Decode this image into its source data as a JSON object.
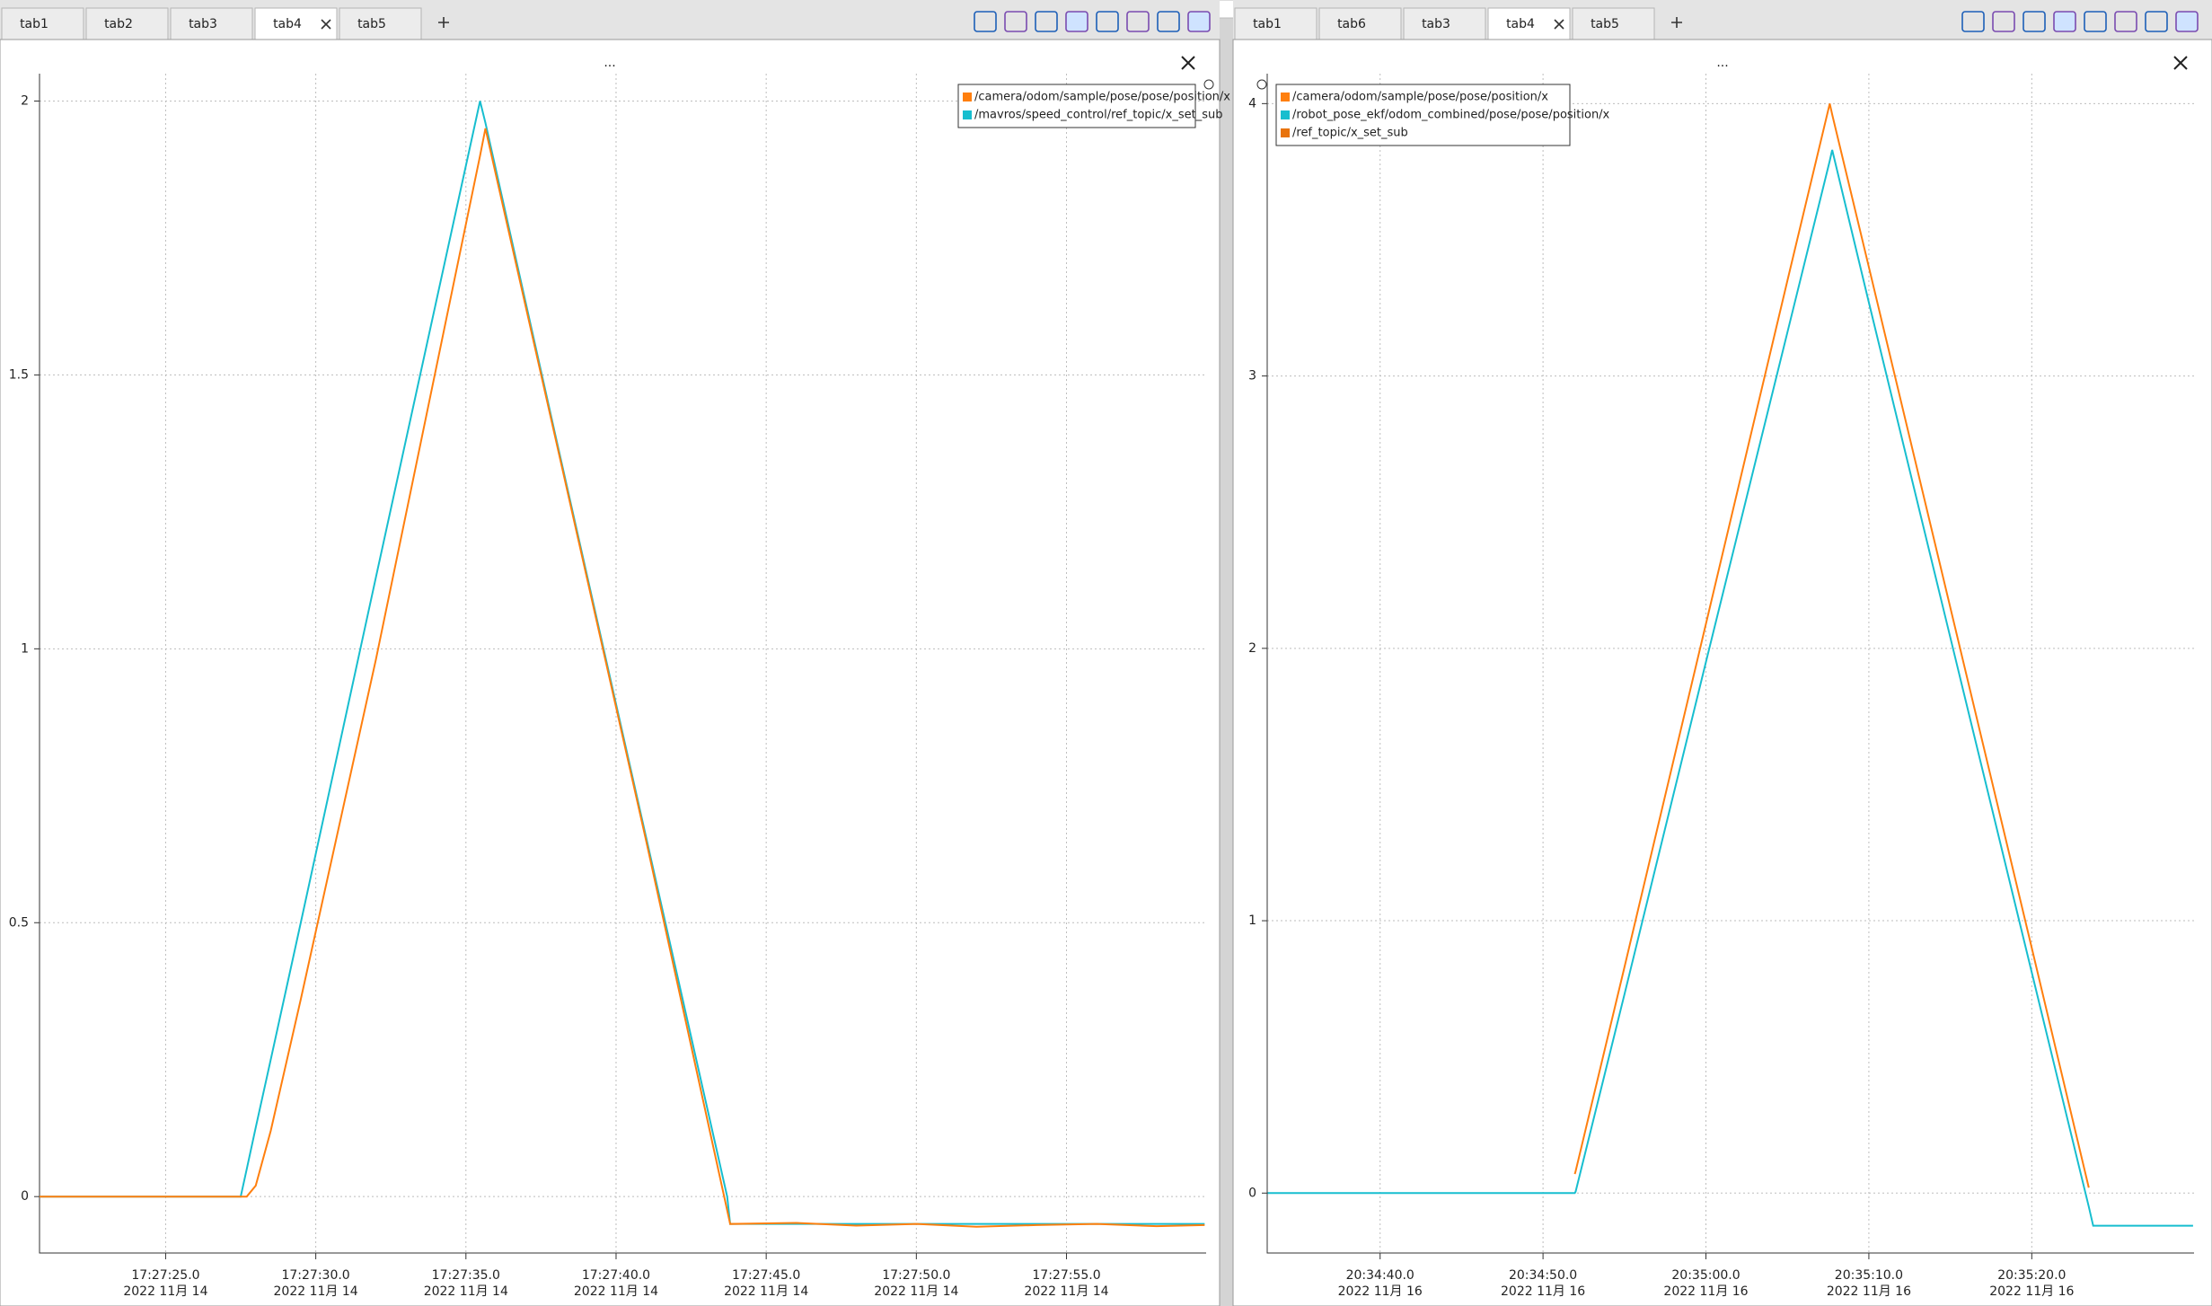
{
  "tab_bars": [
    {
      "tabs": [
        "tab1",
        "tab2",
        "tab3",
        "tab4",
        "tab5"
      ],
      "active": 3
    },
    {
      "tabs": [
        "tab1",
        "tab6",
        "tab3",
        "tab4",
        "tab5"
      ],
      "active": 3
    }
  ],
  "chart_data": [
    {
      "type": "line",
      "title": "...",
      "x": [
        20.8,
        27.5,
        27.7,
        28.0,
        28.5,
        29.5,
        32,
        35.47,
        35.65,
        38,
        41,
        43.7,
        43.8,
        46,
        48,
        50,
        52,
        54,
        56,
        58,
        59.6
      ],
      "series": [
        {
          "name": "/camera/odom/sample/pose/pose/position/x",
          "color": "#ff7f0e",
          "values": [
            0,
            0,
            0,
            0.02,
            0.12,
            0.36,
            0.98,
            1.9,
            1.95,
            1.38,
            0.65,
            -0.025,
            -0.05,
            -0.048,
            -0.053,
            -0.05,
            -0.055,
            -0.052,
            -0.05,
            -0.054,
            -0.052
          ]
        },
        {
          "name": "/mavros/speed_control/ref_topic/x_set_sub",
          "color": "#17becf",
          "values": [
            0,
            0,
            0.05,
            0.126,
            0.25,
            0.5,
            1.13,
            2.0,
            1.96,
            1.385,
            0.656,
            0,
            -0.05,
            -0.05,
            -0.05,
            -0.05,
            -0.05,
            -0.05,
            -0.05,
            -0.05,
            -0.05
          ]
        }
      ],
      "xlim": [
        20.8,
        59.65
      ],
      "xticks": [
        {
          "value": 25,
          "label": "17:27:25.0",
          "date": "2022 11月 14"
        },
        {
          "value": 30,
          "label": "17:27:30.0",
          "date": "2022 11月 14"
        },
        {
          "value": 35,
          "label": "17:27:35.0",
          "date": "2022 11月 14"
        },
        {
          "value": 40,
          "label": "17:27:40.0",
          "date": "2022 11月 14"
        },
        {
          "value": 45,
          "label": "17:27:45.0",
          "date": "2022 11月 14"
        },
        {
          "value": 50,
          "label": "17:27:50.0",
          "date": "2022 11月 14"
        },
        {
          "value": 55,
          "label": "17:27:55.0",
          "date": "2022 11月 14"
        }
      ],
      "ylim": [
        -0.103,
        2.05
      ],
      "yticks": [
        0,
        0.5,
        1,
        1.5,
        2
      ],
      "grid": true,
      "legend": "upper right"
    },
    {
      "type": "line",
      "title": "...",
      "x": [
        33.1,
        51.95,
        52.0,
        55,
        60,
        65,
        67.6,
        67.75,
        70,
        75,
        80,
        83.5,
        83.77,
        85,
        89.9
      ],
      "series": [
        {
          "name": "/camera/odom/sample/pose/pose/position/x",
          "color": "#ff7f0e",
          "values": [
            null,
            0.07,
            0.08,
            0.83,
            2.09,
            3.35,
            4.0,
            3.96,
            3.4,
            2.15,
            0.9,
            0.02,
            null,
            null,
            null
          ]
        },
        {
          "name": "/robot_pose_ekf/odom_combined/pose/pose/position/x",
          "color": "#17becf",
          "values": [
            0,
            0,
            0.005,
            0.73,
            1.95,
            3.16,
            3.79,
            3.83,
            3.27,
            2.04,
            0.81,
            -0.05,
            -0.12,
            -0.12,
            -0.12
          ]
        },
        {
          "name": "/ref_topic/x_set_sub",
          "color": "#e8730c",
          "values": [
            null,
            null,
            null,
            null,
            null,
            null,
            null,
            null,
            null,
            null,
            null,
            null,
            null,
            null,
            null
          ]
        }
      ],
      "xlim": [
        33.07,
        89.96
      ],
      "xticks": [
        {
          "value": 40,
          "label": "20:34:40.0",
          "date": "2022 11月 16"
        },
        {
          "value": 50,
          "label": "20:34:50.0",
          "date": "2022 11月 16"
        },
        {
          "value": 60,
          "label": "20:35:00.0",
          "date": "2022 11月 16"
        },
        {
          "value": 70,
          "label": "20:35:10.0",
          "date": "2022 11月 16"
        },
        {
          "value": 80,
          "label": "20:35:20.0",
          "date": "2022 11月 16"
        }
      ],
      "ylim": [
        -0.22,
        4.11
      ],
      "yticks": [
        0,
        1,
        2,
        3,
        4
      ],
      "grid": true,
      "legend": "upper left"
    }
  ]
}
